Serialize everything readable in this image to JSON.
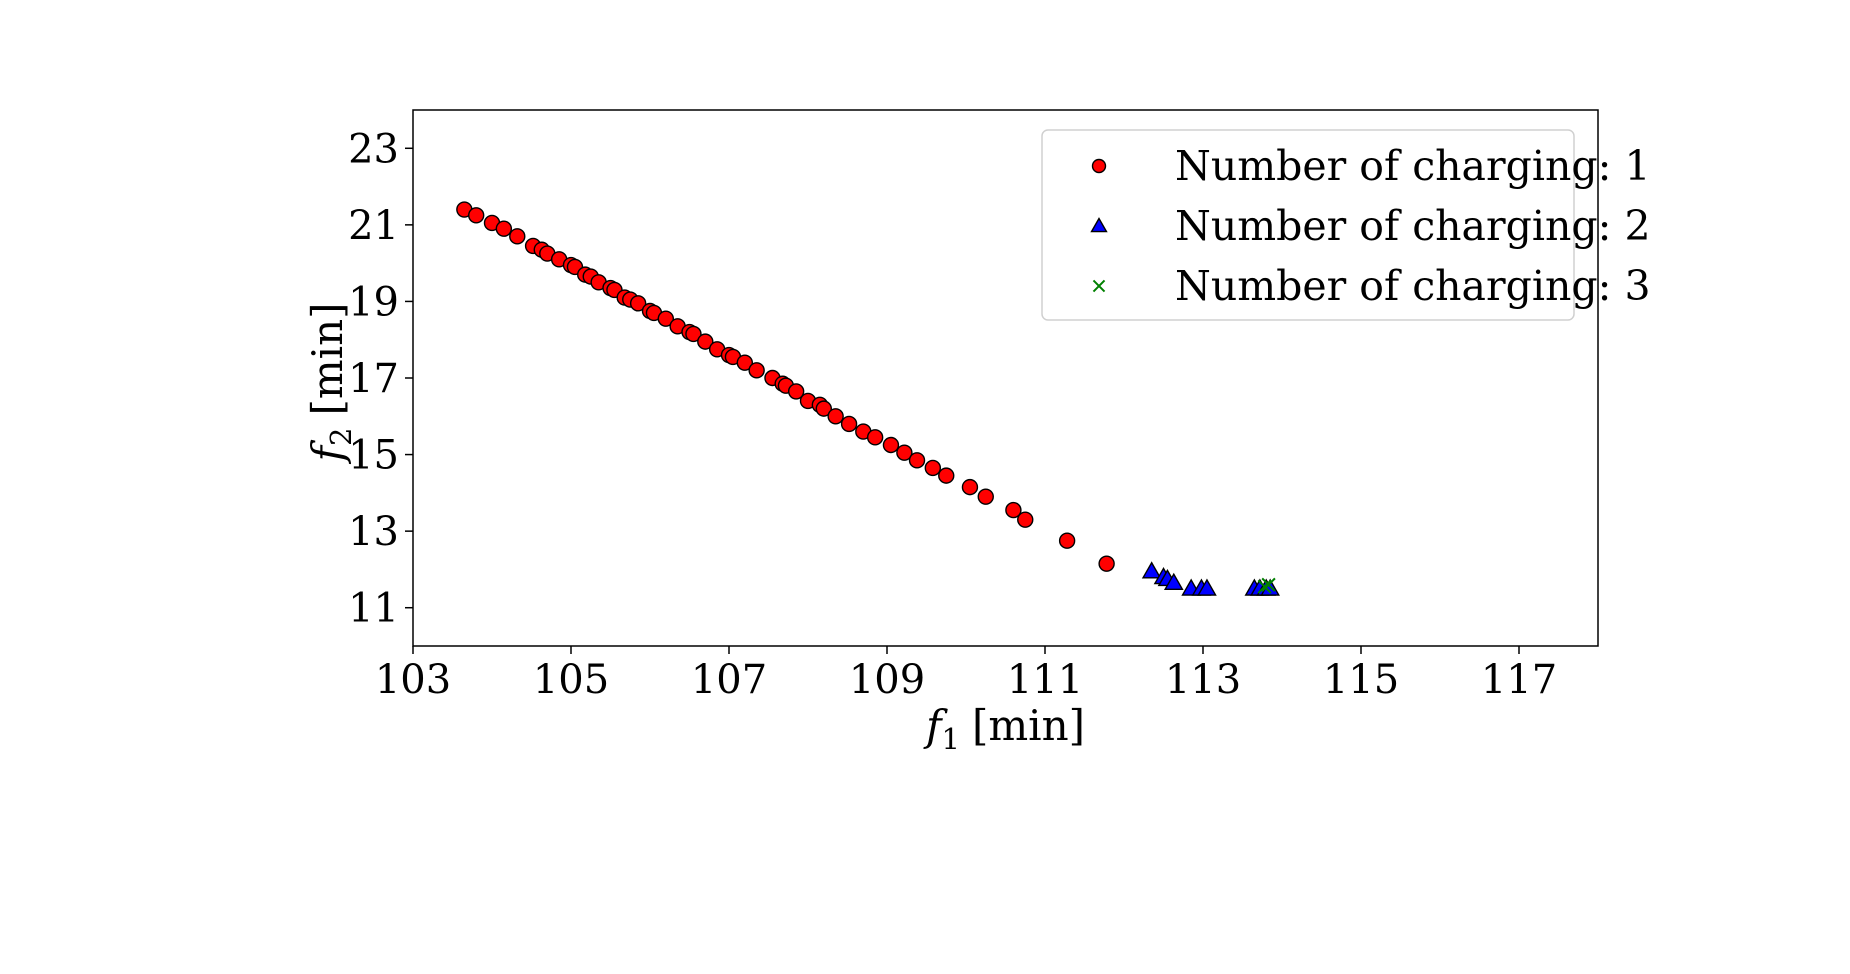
{
  "chart_data": {
    "type": "scatter",
    "title": "",
    "xlabel": {
      "var": "f",
      "sub": "1",
      "unit": "[min]"
    },
    "ylabel": {
      "var": "f",
      "sub": "2",
      "unit": "[min]"
    },
    "xlim": [
      103,
      118
    ],
    "ylim": [
      10,
      24
    ],
    "xticks": [
      103,
      105,
      107,
      109,
      111,
      113,
      115,
      117
    ],
    "yticks": [
      11,
      13,
      15,
      17,
      19,
      21,
      23
    ],
    "grid": false,
    "legend_position": "top-right",
    "series": [
      {
        "name": "Number of charging: 1",
        "marker": "circle",
        "color": "#ff0000",
        "edge_color": "#000000",
        "x": [
          103.65,
          103.8,
          104.0,
          104.15,
          104.32,
          104.52,
          104.63,
          104.7,
          104.85,
          105.0,
          105.05,
          105.18,
          105.25,
          105.35,
          105.5,
          105.55,
          105.68,
          105.75,
          105.85,
          106.0,
          106.05,
          106.2,
          106.35,
          106.5,
          106.55,
          106.7,
          106.85,
          107.0,
          107.05,
          107.2,
          107.35,
          107.55,
          107.68,
          107.72,
          107.85,
          108.0,
          108.15,
          108.2,
          108.35,
          108.52,
          108.7,
          108.85,
          109.05,
          109.22,
          109.38,
          109.58,
          109.75,
          110.05,
          110.25,
          110.6,
          110.75,
          111.28,
          111.78
        ],
        "y": [
          21.4,
          21.25,
          21.05,
          20.9,
          20.7,
          20.45,
          20.35,
          20.25,
          20.1,
          19.95,
          19.9,
          19.7,
          19.65,
          19.5,
          19.35,
          19.3,
          19.1,
          19.05,
          18.95,
          18.75,
          18.7,
          18.55,
          18.35,
          18.2,
          18.15,
          17.95,
          17.75,
          17.6,
          17.55,
          17.4,
          17.2,
          17.0,
          16.85,
          16.8,
          16.65,
          16.4,
          16.3,
          16.2,
          16.0,
          15.8,
          15.6,
          15.45,
          15.25,
          15.05,
          14.85,
          14.65,
          14.45,
          14.15,
          13.9,
          13.55,
          13.3,
          12.75,
          12.15
        ]
      },
      {
        "name": "Number of charging: 2",
        "marker": "triangle",
        "color": "#0000ff",
        "edge_color": "#000000",
        "x": [
          112.35,
          112.5,
          112.55,
          112.63,
          112.85,
          112.98,
          113.05,
          113.65,
          113.72,
          113.8,
          113.85
        ],
        "y": [
          11.95,
          11.8,
          11.75,
          11.65,
          11.5,
          11.5,
          11.5,
          11.5,
          11.5,
          11.5,
          11.5
        ]
      },
      {
        "name": "Number of charging: 3",
        "marker": "x",
        "color": "#008000",
        "x": [
          113.78,
          113.83
        ],
        "y": [
          11.55,
          11.6
        ]
      }
    ]
  }
}
